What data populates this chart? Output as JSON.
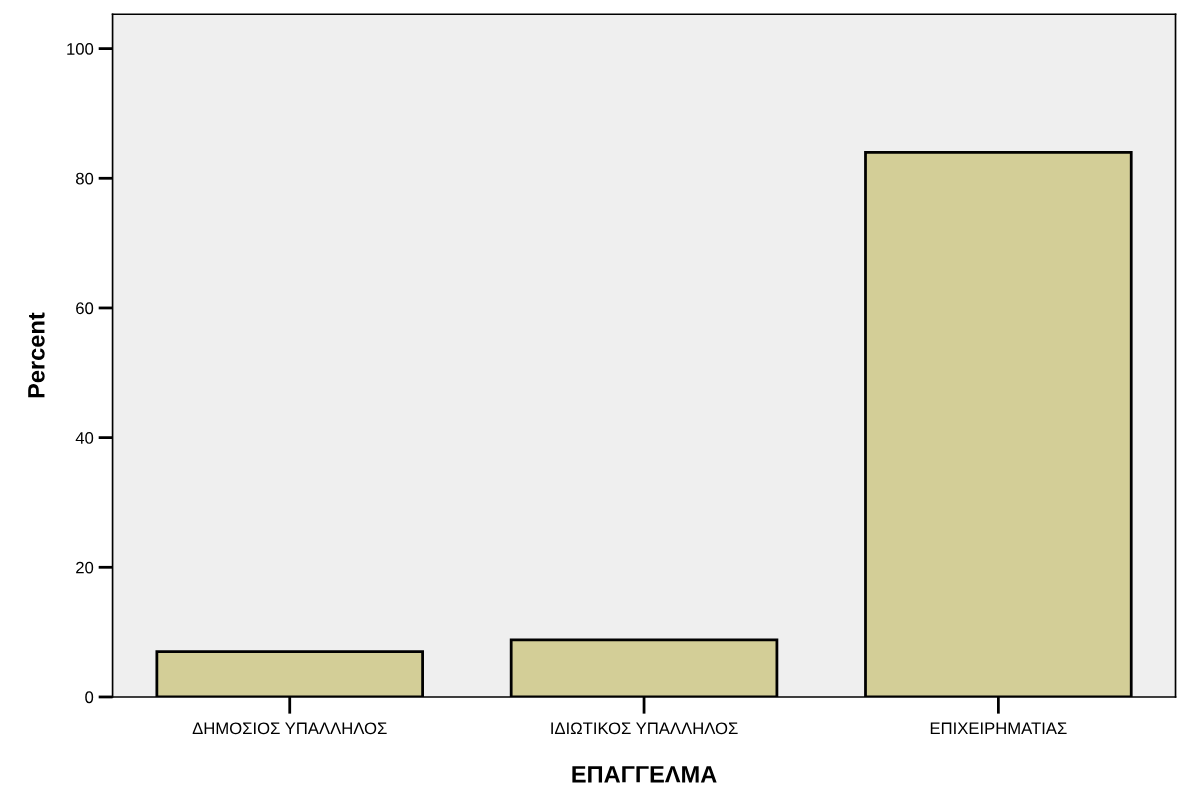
{
  "chart_data": {
    "type": "bar",
    "xlabel": "ΕΠΑΓΓΕΛΜΑ",
    "ylabel": "Percent",
    "categories": [
      "ΔΗΜΟΣΙΟΣ ΥΠΑΛΛΗΛΟΣ",
      "ΙΔΙΩΤΙΚΟΣ ΥΠΑΛΛΗΛΟΣ",
      "ΕΠΙΧΕΙΡΗΜΑΤΙΑΣ"
    ],
    "values": [
      7.0,
      8.8,
      84.0
    ],
    "color": "#d3ce97",
    "ylim": [
      0,
      105.3
    ],
    "yticks": [
      0,
      20,
      40,
      60,
      80,
      100
    ],
    "grid": false,
    "legend": false
  }
}
